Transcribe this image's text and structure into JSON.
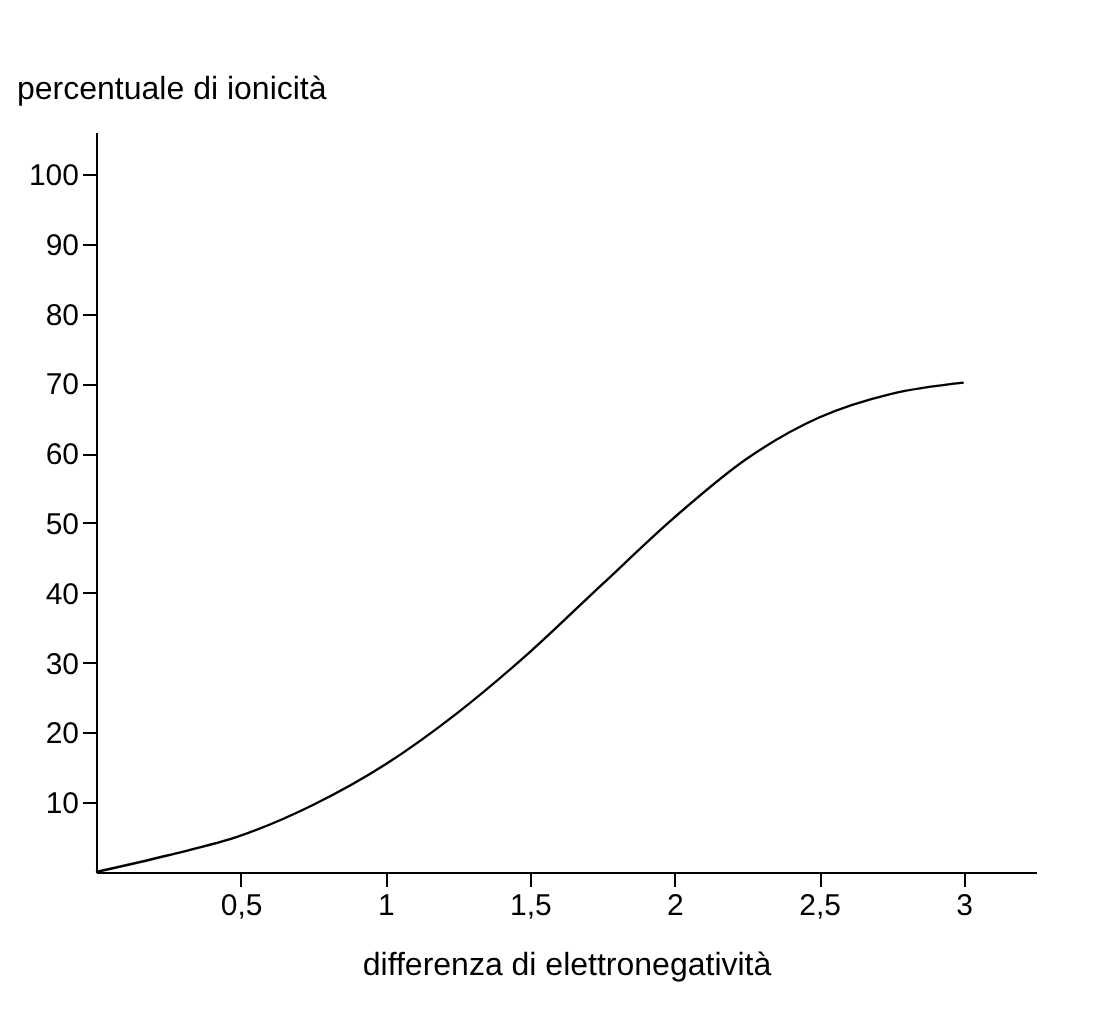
{
  "chart_data": {
    "type": "line",
    "xlabel": "differenza di elettronegatività",
    "ylabel": "percentuale di ionicità",
    "x": [
      0,
      0.25,
      0.5,
      0.75,
      1,
      1.25,
      1.5,
      1.75,
      2,
      2.25,
      2.5,
      2.75,
      3
    ],
    "series": [
      {
        "color": "#000000",
        "values": [
          0,
          2.4,
          5.2,
          9.6,
          15.4,
          22.8,
          31.5,
          41.2,
          50.8,
          59.2,
          65.1,
          68.5,
          70.1
        ]
      }
    ],
    "xlim": [
      0,
      3.25
    ],
    "ylim": [
      0,
      106
    ],
    "xticks": [
      {
        "value": 0.5,
        "label": "0,5"
      },
      1,
      {
        "value": 1.5,
        "label": "1,5"
      },
      2,
      {
        "value": 2.5,
        "label": "2,5"
      },
      3
    ],
    "yticks": [
      10,
      20,
      30,
      40,
      50,
      60,
      70,
      80,
      90,
      100
    ],
    "grid": false,
    "marker": "none",
    "line_style": "solid"
  }
}
